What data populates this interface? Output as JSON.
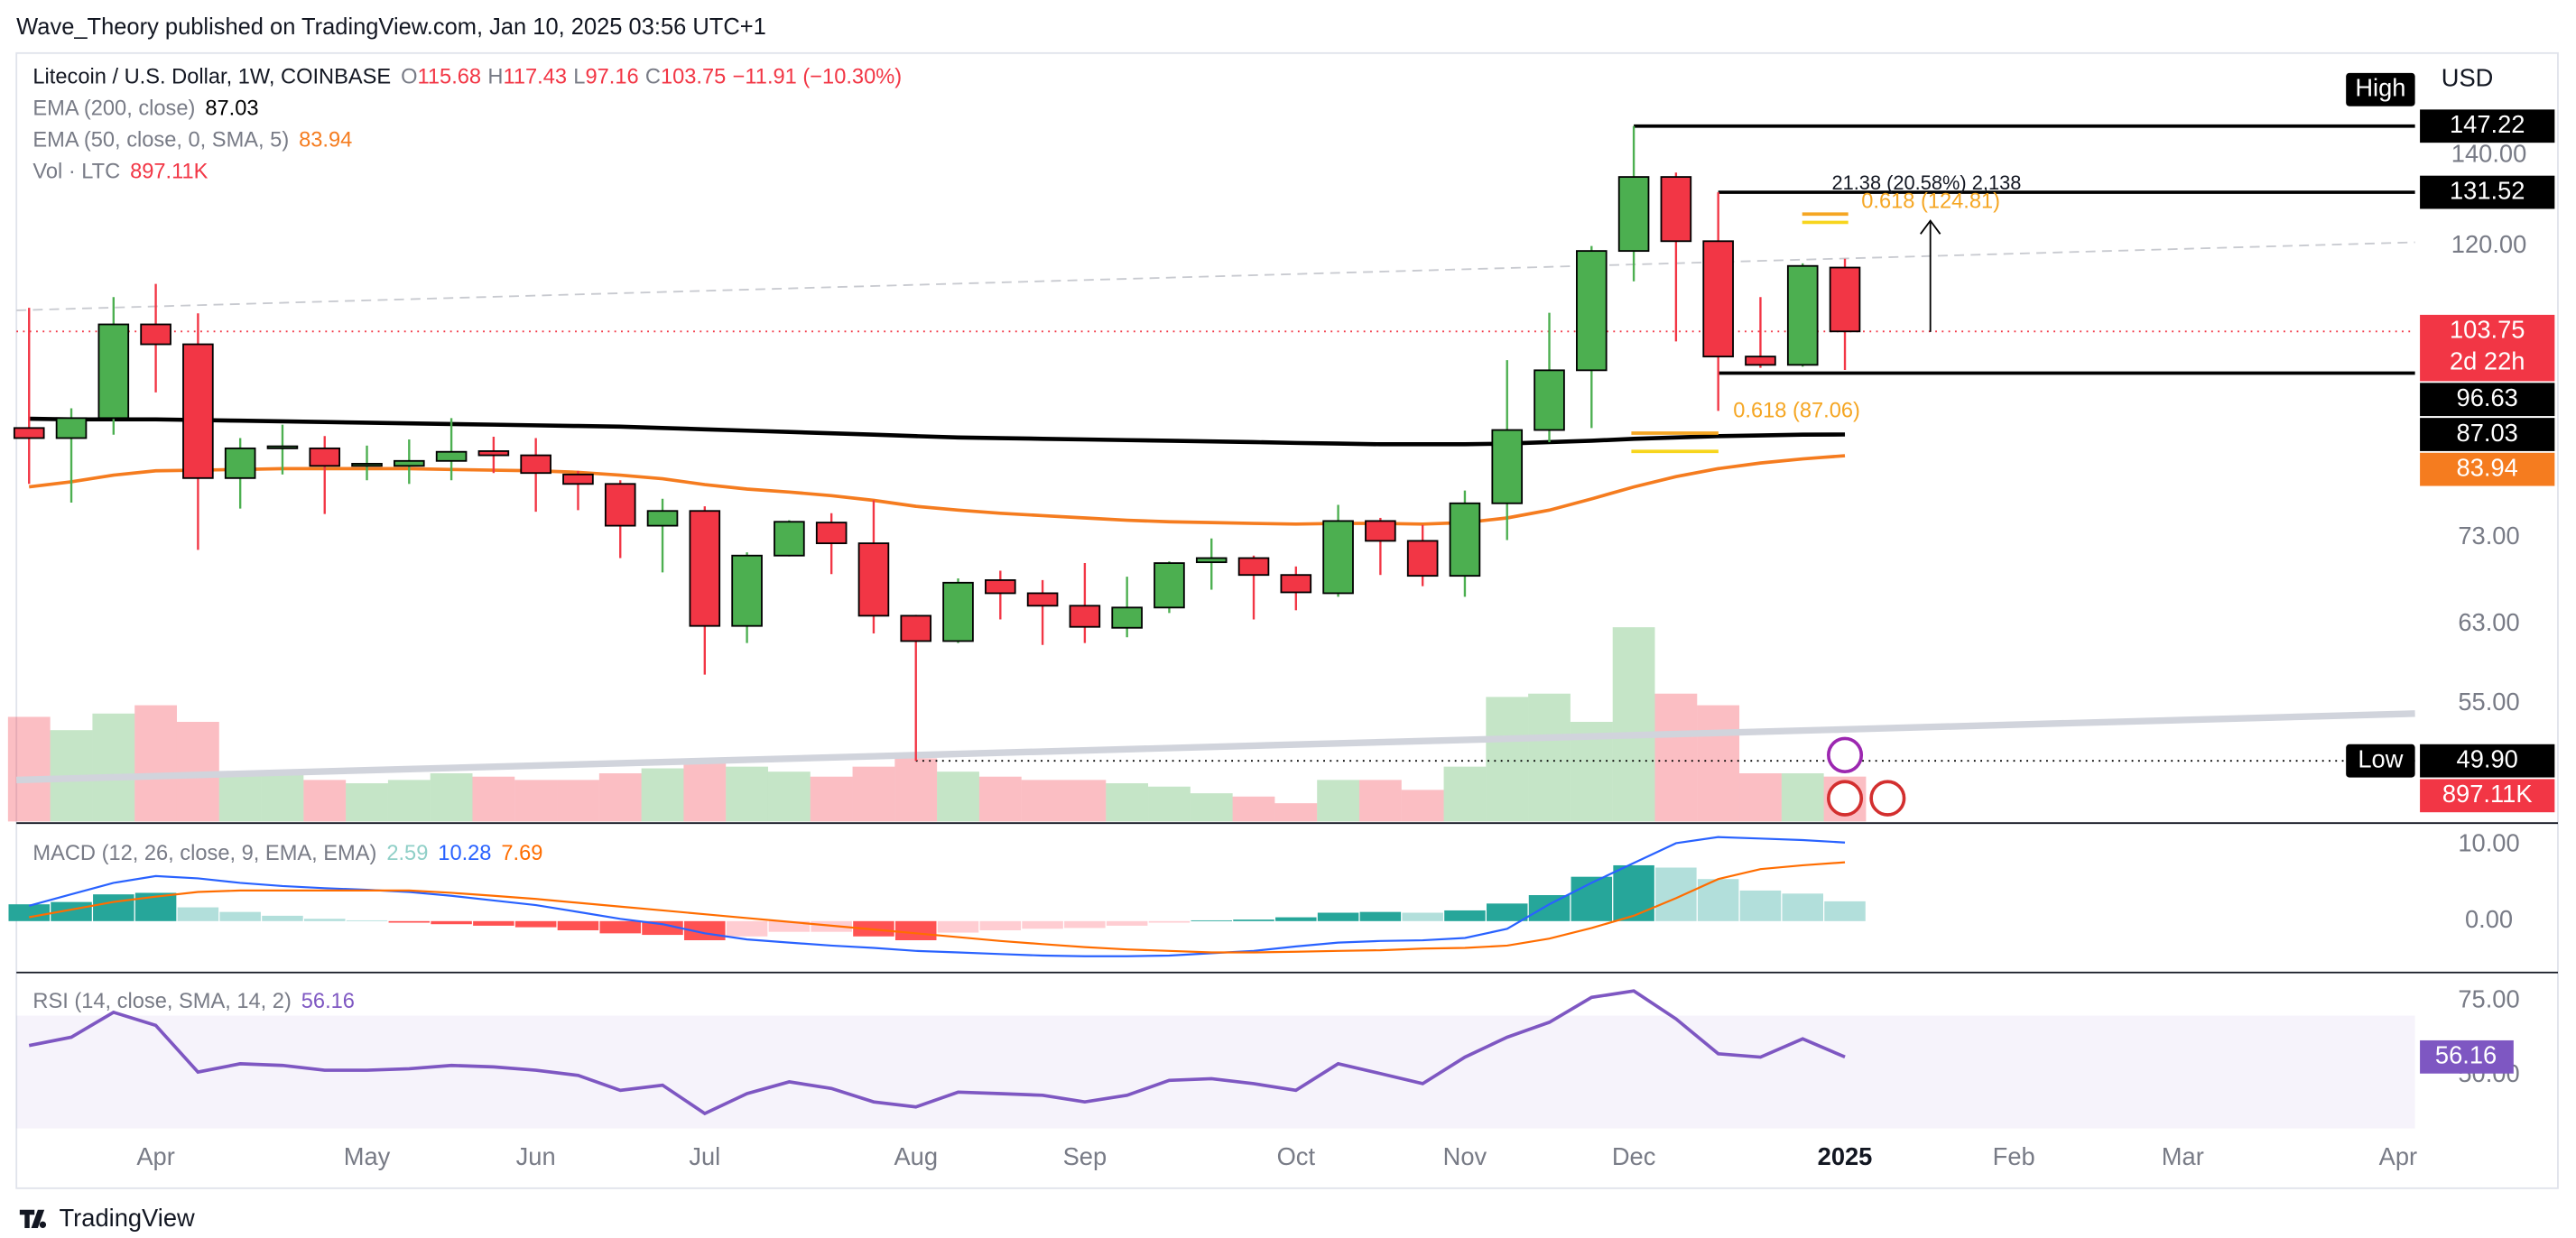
{
  "header": "Wave_Theory published on TradingView.com, Jan 10, 2025 03:56 UTC+1",
  "footer": "TradingView",
  "currency": "USD",
  "chart_data": {
    "type": "candlestick",
    "title": "Litecoin / U.S. Dollar, 1W, COINBASE",
    "ohlc_labels": [
      "O",
      "H",
      "L",
      "C"
    ],
    "change_label": "−11.91 (−10.30%)",
    "x": [
      0,
      1,
      2,
      3,
      4,
      5,
      6,
      7,
      8,
      9,
      10,
      11,
      12,
      13,
      14,
      15,
      16,
      17,
      18,
      19,
      20,
      21,
      22,
      23,
      24,
      25,
      26,
      27,
      28,
      29,
      30,
      31,
      32,
      33,
      34,
      35,
      36,
      37,
      38,
      39,
      40,
      41,
      42,
      43
    ],
    "xlim": [
      -0.3,
      56.5
    ],
    "xticks": [
      {
        "value": 3,
        "label": "Apr"
      },
      {
        "value": 8,
        "label": "May"
      },
      {
        "value": 12,
        "label": "Jun"
      },
      {
        "value": 16,
        "label": "Jul"
      },
      {
        "value": 21,
        "label": "Aug"
      },
      {
        "value": 25,
        "label": "Sep"
      },
      {
        "value": 30,
        "label": "Oct"
      },
      {
        "value": 34,
        "label": "Nov"
      },
      {
        "value": 38,
        "label": "Dec"
      },
      {
        "value": 43,
        "label": "2025"
      },
      {
        "value": 47,
        "label": "Feb"
      },
      {
        "value": 51,
        "label": "Mar"
      },
      {
        "value": 56.1,
        "label": "Apr"
      }
    ],
    "open": [
      88,
      86.5,
      89.5,
      105,
      101.5,
      80.8,
      85,
      85,
      82.5,
      82.5,
      83.2,
      84.6,
      84,
      81.3,
      80,
      74.5,
      76.4,
      62.8,
      70.8,
      74.9,
      72.3,
      63.9,
      61.2,
      67.9,
      66.4,
      65,
      62.6,
      64.8,
      70,
      70.5,
      68.5,
      66.4,
      75.1,
      72.6,
      68.4,
      77.4,
      87.7,
      97.1,
      119,
      135,
      121,
      99.4,
      98,
      115.68
    ],
    "high": [
      108,
      91,
      110,
      112.5,
      107,
      86.5,
      88.5,
      86.8,
      85.4,
      86.3,
      89.5,
      86.7,
      86.5,
      81.8,
      80.5,
      78,
      77,
      71.2,
      75.2,
      76.1,
      77.8,
      64,
      68.1,
      69,
      67.9,
      69.9,
      68.3,
      70.1,
      72.9,
      70.8,
      69.5,
      77.2,
      75.5,
      74.6,
      79.1,
      98.8,
      107.1,
      120,
      147.22,
      136,
      131.52,
      110,
      116.5,
      117.43
    ],
    "low": [
      80,
      77.5,
      87,
      93.5,
      71.5,
      76.7,
      81.3,
      76,
      80.5,
      80,
      80.5,
      81.5,
      76.3,
      76.5,
      70.5,
      68.8,
      57.8,
      61,
      70.7,
      68.6,
      62,
      49.9,
      61,
      63.5,
      60.8,
      61,
      61.6,
      64.2,
      66.8,
      63.5,
      64.5,
      66,
      68.5,
      67.2,
      66,
      72.7,
      85.9,
      88,
      113,
      102,
      90.6,
      97.5,
      97.7,
      97.16
    ],
    "close": [
      86.5,
      89.5,
      105,
      101.5,
      80.8,
      85,
      85.3,
      82.5,
      82.8,
      83.2,
      84.5,
      84,
      81.5,
      80,
      74.5,
      76.4,
      62.8,
      70.8,
      75,
      72.3,
      63.9,
      61.2,
      67.6,
      66.4,
      65,
      62.7,
      64.8,
      69.9,
      70.5,
      68.5,
      66.5,
      75.1,
      72.6,
      68.4,
      77.4,
      87.7,
      97.1,
      119,
      135,
      121,
      99.4,
      98,
      116,
      103.75
    ],
    "up_color": "#4caf50",
    "down_color": "#f23645",
    "ylim": [
      45,
      163
    ],
    "log_scale": true,
    "yticks": [
      {
        "value": 140,
        "label": "140.00"
      },
      {
        "value": 120,
        "label": "120.00"
      },
      {
        "value": 73,
        "label": "73.00"
      },
      {
        "value": 63,
        "label": "63.00"
      },
      {
        "value": 55,
        "label": "55.00"
      }
    ],
    "series": [
      {
        "name": "EMA (200, close)",
        "color": "#000000",
        "values": [
          89.4,
          89.3,
          89.3,
          89.3,
          89.2,
          89.1,
          89.0,
          88.9,
          88.8,
          88.7,
          88.6,
          88.5,
          88.4,
          88.3,
          88.2,
          88.0,
          87.8,
          87.6,
          87.4,
          87.2,
          87.0,
          86.8,
          86.6,
          86.5,
          86.4,
          86.3,
          86.2,
          86.1,
          86.0,
          85.9,
          85.8,
          85.7,
          85.6,
          85.6,
          85.6,
          85.7,
          85.9,
          86.1,
          86.4,
          86.6,
          86.8,
          86.9,
          87.0,
          87.03
        ]
      },
      {
        "name": "EMA (50, close, 0, SMA, 5)",
        "color": "#f57c1f",
        "values": [
          79.6,
          80.3,
          81.2,
          81.8,
          81.9,
          82.0,
          82.1,
          82.1,
          82.1,
          82.1,
          82.0,
          81.9,
          81.8,
          81.6,
          81.2,
          80.7,
          79.9,
          79.3,
          78.9,
          78.4,
          77.8,
          77.0,
          76.5,
          76.1,
          75.8,
          75.5,
          75.2,
          75.0,
          74.9,
          74.8,
          74.7,
          74.8,
          74.8,
          74.7,
          74.9,
          75.5,
          76.5,
          78.0,
          79.6,
          81.0,
          82.1,
          82.9,
          83.5,
          83.94
        ]
      }
    ],
    "price_tags": [
      {
        "value": 147.22,
        "label": "147.22",
        "tag": "High"
      },
      {
        "value": 131.52,
        "label": "131.52"
      },
      {
        "value": 96.63,
        "label": "96.63"
      },
      {
        "value": 49.9,
        "label": "49.90",
        "tag": "Low"
      }
    ],
    "countdown": "2d 22h",
    "annotations": [
      "21.38 (20.58%) 2,138",
      "0.618 (124.81)",
      "0.618 (87.06)"
    ],
    "volume": {
      "name": "Vol · LTC",
      "values": [
        2092,
        1826,
        2158,
        2324,
        1992,
        996,
        996,
        830,
        764,
        830,
        963,
        896,
        830,
        830,
        963,
        1062,
        1162,
        1096,
        996,
        896,
        1096,
        1262,
        996,
        896,
        830,
        830,
        764,
        697,
        564,
        498,
        365,
        830,
        830,
        631,
        1096,
        2490,
        2556,
        1992,
        3884,
        2556,
        2324,
        963,
        963,
        897.11
      ],
      "value_labels": {
        "43": "897.11K"
      },
      "ylim": [
        0,
        15100
      ]
    },
    "macd": {
      "title": "MACD (12, 26, close, 9, EMA, EMA)",
      "histogram": [
        2.2,
        2.5,
        3.5,
        3.7,
        1.8,
        1.2,
        0.7,
        0.3,
        0.1,
        -0.2,
        -0.4,
        -0.6,
        -0.8,
        -1.2,
        -1.6,
        -1.8,
        -2.5,
        -2.0,
        -1.4,
        -1.4,
        -2.0,
        -2.5,
        -1.5,
        -1.2,
        -1.0,
        -0.9,
        -0.6,
        -0.2,
        0.1,
        0.2,
        0.5,
        1.1,
        1.2,
        1.1,
        1.4,
        2.3,
        3.4,
        5.8,
        7.3,
        7.0,
        5.5,
        4.0,
        3.6,
        2.59
      ],
      "macd": [
        2.0,
        3.5,
        5.0,
        5.9,
        5.6,
        5.0,
        4.6,
        4.3,
        4.1,
        3.8,
        3.3,
        2.7,
        2.1,
        1.2,
        0.3,
        -0.4,
        -1.6,
        -2.4,
        -2.8,
        -3.2,
        -3.5,
        -3.9,
        -4.1,
        -4.3,
        -4.5,
        -4.6,
        -4.6,
        -4.5,
        -4.2,
        -3.9,
        -3.3,
        -2.8,
        -2.6,
        -2.5,
        -2.2,
        -1.0,
        2.2,
        5.0,
        7.6,
        10.2,
        11.0,
        10.8,
        10.6,
        10.28
      ],
      "signal": [
        0.5,
        1.5,
        2.5,
        3.2,
        3.8,
        4.0,
        4.0,
        4.0,
        4.0,
        4.0,
        3.7,
        3.3,
        2.9,
        2.4,
        1.9,
        1.4,
        0.9,
        0.4,
        -0.1,
        -0.6,
        -1.1,
        -1.6,
        -2.1,
        -2.6,
        -3.0,
        -3.4,
        -3.7,
        -3.9,
        -4.1,
        -4.1,
        -4.0,
        -3.9,
        -3.8,
        -3.6,
        -3.5,
        -3.2,
        -2.3,
        -0.9,
        0.7,
        3.0,
        5.5,
        6.8,
        7.3,
        7.69
      ],
      "macd_color": "#2962ff",
      "signal_color": "#ff6d00",
      "ylim": [
        -6.5,
        12.6
      ],
      "yticks": [
        {
          "value": 10,
          "label": "10.00"
        },
        {
          "value": 0,
          "label": "0.00"
        }
      ]
    },
    "rsi": {
      "title": "RSI (14, close, SMA, 14, 2)",
      "values": [
        60,
        62.8,
        71.1,
        66.7,
        51.1,
        53.9,
        53.3,
        51.7,
        51.7,
        52.2,
        53.3,
        52.8,
        51.7,
        50,
        45,
        46.7,
        37.2,
        43.9,
        47.8,
        45.6,
        41.1,
        39.4,
        44.4,
        43.9,
        43.3,
        41.1,
        43.3,
        48.3,
        48.9,
        47.2,
        45,
        53.9,
        50.6,
        47.2,
        56.1,
        62.8,
        67.8,
        76.1,
        78.3,
        68.9,
        57.2,
        56.1,
        62.2,
        56.16
      ],
      "color": "#7e57c2",
      "band": [
        30,
        70
      ],
      "ylim": [
        32.2,
        83.9
      ],
      "yticks": [
        {
          "value": 75,
          "label": "75.00"
        },
        {
          "value": 50,
          "label": "50.00"
        }
      ]
    }
  }
}
